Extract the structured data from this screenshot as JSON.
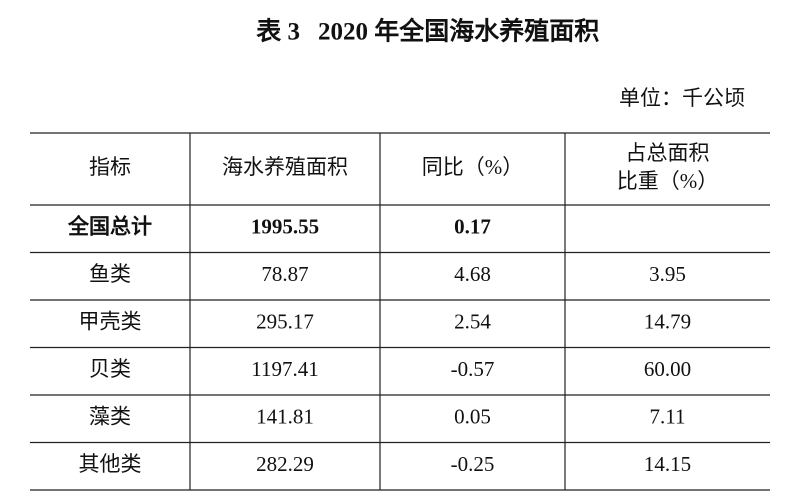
{
  "header": {
    "label": "表 3",
    "title": "2020 年全国海水养殖面积",
    "unit": "单位：千公顷"
  },
  "table": {
    "columns": [
      "指标",
      "海水养殖面积",
      "同比（%）",
      [
        "占总面积",
        "比重（%）"
      ]
    ],
    "rows": [
      [
        "全国总计",
        "1995.55",
        "0.17",
        null
      ],
      [
        "鱼类",
        "78.87",
        "4.68",
        "3.95"
      ],
      [
        "甲壳类",
        "295.17",
        "2.54",
        "14.79"
      ],
      [
        "贝类",
        "1197.41",
        "-0.57",
        "60.00"
      ],
      [
        "藻类",
        "141.81",
        "0.05",
        "7.11"
      ],
      [
        "其他类",
        "282.29",
        "-0.25",
        "14.15"
      ]
    ],
    "bold_rows": [
      0
    ]
  }
}
